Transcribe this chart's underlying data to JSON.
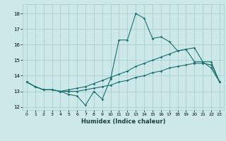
{
  "xlabel": "Humidex (Indice chaleur)",
  "xlim": [
    -0.5,
    23.5
  ],
  "ylim": [
    11.8,
    18.6
  ],
  "yticks": [
    12,
    13,
    14,
    15,
    16,
    17,
    18
  ],
  "xticks": [
    0,
    1,
    2,
    3,
    4,
    5,
    6,
    7,
    8,
    9,
    10,
    11,
    12,
    13,
    14,
    15,
    16,
    17,
    18,
    19,
    20,
    21,
    22,
    23
  ],
  "bg_color": "#cce8e8",
  "grid_color": "#aacece",
  "line_color": "#1a7070",
  "line1_x": [
    0,
    1,
    2,
    3,
    4,
    5,
    6,
    7,
    8,
    9,
    10,
    11,
    12,
    13,
    14,
    15,
    16,
    17,
    18,
    19,
    20,
    21,
    22,
    23
  ],
  "line1_y": [
    13.6,
    13.3,
    13.1,
    13.1,
    13.0,
    12.8,
    12.7,
    12.1,
    13.0,
    12.5,
    13.8,
    16.3,
    16.3,
    18.0,
    17.7,
    16.4,
    16.5,
    16.2,
    15.6,
    15.7,
    14.9,
    14.9,
    14.5,
    13.6
  ],
  "line2_x": [
    0,
    1,
    2,
    3,
    4,
    5,
    6,
    7,
    8,
    9,
    10,
    11,
    12,
    13,
    14,
    15,
    16,
    17,
    18,
    19,
    20,
    21,
    22,
    23
  ],
  "line2_y": [
    13.6,
    13.3,
    13.1,
    13.1,
    13.0,
    13.1,
    13.2,
    13.3,
    13.5,
    13.7,
    13.9,
    14.1,
    14.3,
    14.6,
    14.8,
    15.0,
    15.2,
    15.4,
    15.6,
    15.7,
    15.8,
    14.9,
    14.9,
    13.6
  ],
  "line3_x": [
    0,
    1,
    2,
    3,
    4,
    5,
    6,
    7,
    8,
    9,
    10,
    11,
    12,
    13,
    14,
    15,
    16,
    17,
    18,
    19,
    20,
    21,
    22,
    23
  ],
  "line3_y": [
    13.6,
    13.3,
    13.1,
    13.1,
    13.0,
    13.0,
    13.0,
    13.1,
    13.2,
    13.3,
    13.4,
    13.6,
    13.7,
    13.9,
    14.0,
    14.2,
    14.3,
    14.5,
    14.6,
    14.7,
    14.8,
    14.8,
    14.7,
    13.6
  ]
}
